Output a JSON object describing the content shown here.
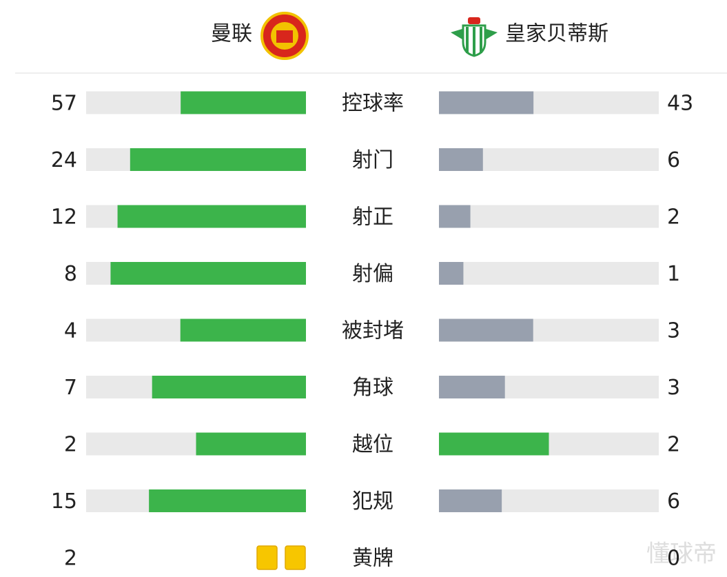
{
  "header": {
    "home_team": "曼联",
    "away_team": "皇家贝蒂斯"
  },
  "colors": {
    "leader": "#3cb44b",
    "trailer": "#98a0ae",
    "track": "#e9e9e9",
    "card": "#f7c600"
  },
  "stats": [
    {
      "type": "bar",
      "label": "控球率",
      "home": 57,
      "away": 43
    },
    {
      "type": "bar",
      "label": "射门",
      "home": 24,
      "away": 6
    },
    {
      "type": "bar",
      "label": "射正",
      "home": 12,
      "away": 2
    },
    {
      "type": "bar",
      "label": "射偏",
      "home": 8,
      "away": 1
    },
    {
      "type": "bar",
      "label": "被封堵",
      "home": 4,
      "away": 3
    },
    {
      "type": "bar",
      "label": "角球",
      "home": 7,
      "away": 3
    },
    {
      "type": "bar",
      "label": "越位",
      "home": 2,
      "away": 2
    },
    {
      "type": "bar",
      "label": "犯规",
      "home": 15,
      "away": 6
    },
    {
      "type": "cards",
      "label": "黄牌",
      "home": 2,
      "away": 0
    }
  ],
  "watermark": "懂球帝"
}
